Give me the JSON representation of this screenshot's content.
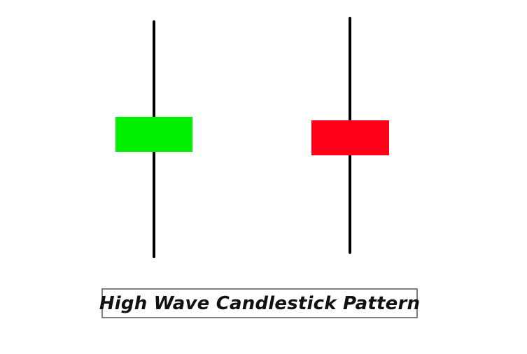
{
  "caption": "High Wave Candlestick Pattern",
  "colors": {
    "wick": "#000000",
    "bullish_body": "#00ee00",
    "bearish_body": "#ff0018",
    "caption_border": "#7f7f7f"
  },
  "candles": [
    {
      "kind": "bullish",
      "color_key": "bullish_body"
    },
    {
      "kind": "bearish",
      "color_key": "bearish_body"
    }
  ]
}
